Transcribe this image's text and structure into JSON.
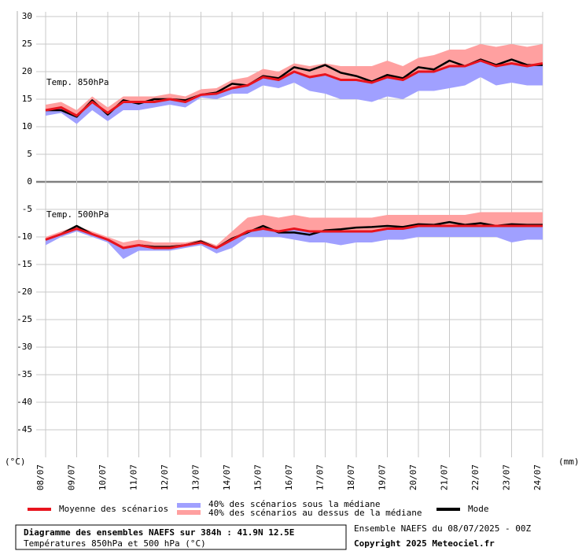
{
  "chart_data": {
    "type": "line",
    "title": "Diagramme des ensembles NAEFS sur 384h : 41.9N 12.5E",
    "subtitle": "Températures 850hPa et 500 hPa (°C)",
    "note": "Ensemble NAEFS du 08/07/2025 - 00Z",
    "copyright": "Copyright 2025 Meteociel.fr",
    "y_label": "(°C)",
    "y2_label": "(mm)",
    "grid": true,
    "x": [
      "08/07",
      "09/07",
      "10/07",
      "11/07",
      "12/07",
      "13/07",
      "14/07",
      "15/07",
      "16/07",
      "17/07",
      "18/07",
      "19/07",
      "20/07",
      "21/07",
      "22/07",
      "23/07",
      "24/07"
    ],
    "ylim": [
      -50,
      30
    ],
    "yticks": [
      30,
      25,
      20,
      15,
      10,
      5,
      0,
      -5,
      -10,
      -15,
      -20,
      -25,
      -30,
      -35,
      -40,
      -45
    ],
    "legend": [
      {
        "name": "Moyenne des scénarios",
        "color": "#e8141e"
      },
      {
        "name": "40% des scénarios sous la médiane",
        "color": "#a0a0ff"
      },
      {
        "name": "40% des scénarios au dessus de la médiane",
        "color": "#ffa0a0"
      },
      {
        "name": "Mode",
        "color": "#000000"
      }
    ],
    "levels": [
      {
        "label": "Temp. 850hPa",
        "mean": [
          13,
          13.5,
          12,
          14.5,
          12.5,
          14.5,
          14.5,
          14.5,
          15,
          14.5,
          15.8,
          16,
          17,
          17.5,
          19,
          18.5,
          20,
          19,
          19.5,
          18.5,
          18.5,
          18,
          19,
          18.5,
          20,
          20,
          21,
          21,
          22,
          21,
          21.5,
          21,
          21.5
        ],
        "mode": [
          13,
          13,
          11.8,
          14.8,
          12.2,
          14.8,
          14.2,
          15,
          15,
          14.8,
          15.8,
          16.2,
          17.8,
          17.5,
          19.2,
          18.8,
          20.8,
          20.2,
          21.2,
          19.8,
          19.2,
          18.2,
          19.4,
          18.8,
          20.8,
          20.4,
          22,
          21,
          22.2,
          21.2,
          22.2,
          21.2,
          21.2
        ],
        "median": [
          13,
          13.5,
          12,
          14.5,
          12.5,
          14.5,
          14.5,
          14.5,
          15,
          14.5,
          15.8,
          16,
          17,
          17.5,
          19,
          18.5,
          20,
          19,
          19.5,
          18.5,
          18.5,
          18,
          19,
          18.5,
          20,
          20,
          21,
          21,
          22,
          21,
          21.5,
          21,
          21.5
        ],
        "low": [
          12,
          12.5,
          10.5,
          13,
          11,
          13,
          13,
          13.5,
          14,
          13.5,
          15.3,
          15,
          16,
          16,
          17.5,
          17,
          18,
          16.5,
          16,
          15,
          15,
          14.5,
          15.5,
          15,
          16.5,
          16.5,
          17,
          17.5,
          19,
          17.5,
          18,
          17.5,
          17.5
        ],
        "high": [
          14,
          14.5,
          13,
          15.5,
          13.5,
          15.5,
          15.5,
          15.5,
          16,
          15.5,
          16.8,
          17,
          18.5,
          19,
          20.5,
          20,
          21.5,
          21,
          21.5,
          21,
          21,
          21,
          22,
          21,
          22.5,
          23,
          24,
          24,
          25,
          24.5,
          25,
          24.5,
          25
        ]
      },
      {
        "label": "Temp. 500hPa",
        "mean": [
          -10.5,
          -9.5,
          -8.5,
          -9.5,
          -10.5,
          -12,
          -11.5,
          -12,
          -12,
          -11.5,
          -11,
          -12,
          -10.5,
          -9,
          -8.5,
          -9,
          -8.5,
          -9,
          -9,
          -9,
          -9,
          -9,
          -8.5,
          -8.5,
          -8,
          -8,
          -8,
          -8,
          -8,
          -8,
          -8,
          -8,
          -8
        ],
        "mode": [
          -10.5,
          -9.5,
          -8,
          -9.5,
          -10.5,
          -12,
          -11.5,
          -11.8,
          -11.8,
          -11.5,
          -10.8,
          -12,
          -10.3,
          -9.2,
          -8,
          -9.2,
          -9.2,
          -9.6,
          -8.8,
          -8.6,
          -8.3,
          -8.2,
          -8,
          -8.2,
          -7.7,
          -7.8,
          -7.3,
          -7.8,
          -7.5,
          -8,
          -7.7,
          -7.8,
          -7.8
        ],
        "median": [
          -10.5,
          -9.5,
          -8.5,
          -9.5,
          -10.5,
          -12,
          -11.5,
          -12,
          -12,
          -11.5,
          -11,
          -12,
          -10.5,
          -9,
          -8.5,
          -9,
          -8.5,
          -9,
          -9,
          -9,
          -9,
          -9,
          -8.5,
          -8.5,
          -8,
          -8,
          -8,
          -8,
          -8,
          -8,
          -8,
          -8,
          -8
        ],
        "low": [
          -11.5,
          -10,
          -9,
          -10,
          -11,
          -14,
          -12.5,
          -12.5,
          -12.5,
          -12,
          -11.5,
          -13,
          -12,
          -10,
          -10,
          -10,
          -10.5,
          -11,
          -11,
          -11.5,
          -11,
          -11,
          -10.5,
          -10.5,
          -10,
          -10,
          -10,
          -10,
          -10,
          -10,
          -11,
          -10.5,
          -10.5
        ],
        "high": [
          -10,
          -9,
          -8,
          -9,
          -10,
          -11,
          -10.5,
          -11,
          -11,
          -11,
          -10.5,
          -11.5,
          -9,
          -6.5,
          -6,
          -6.5,
          -6,
          -6.5,
          -6.5,
          -6.5,
          -6.5,
          -6.5,
          -6,
          -6,
          -6,
          -6,
          -6,
          -6,
          -5.5,
          -5.5,
          -5.5,
          -5.5,
          -5.5
        ]
      }
    ]
  }
}
